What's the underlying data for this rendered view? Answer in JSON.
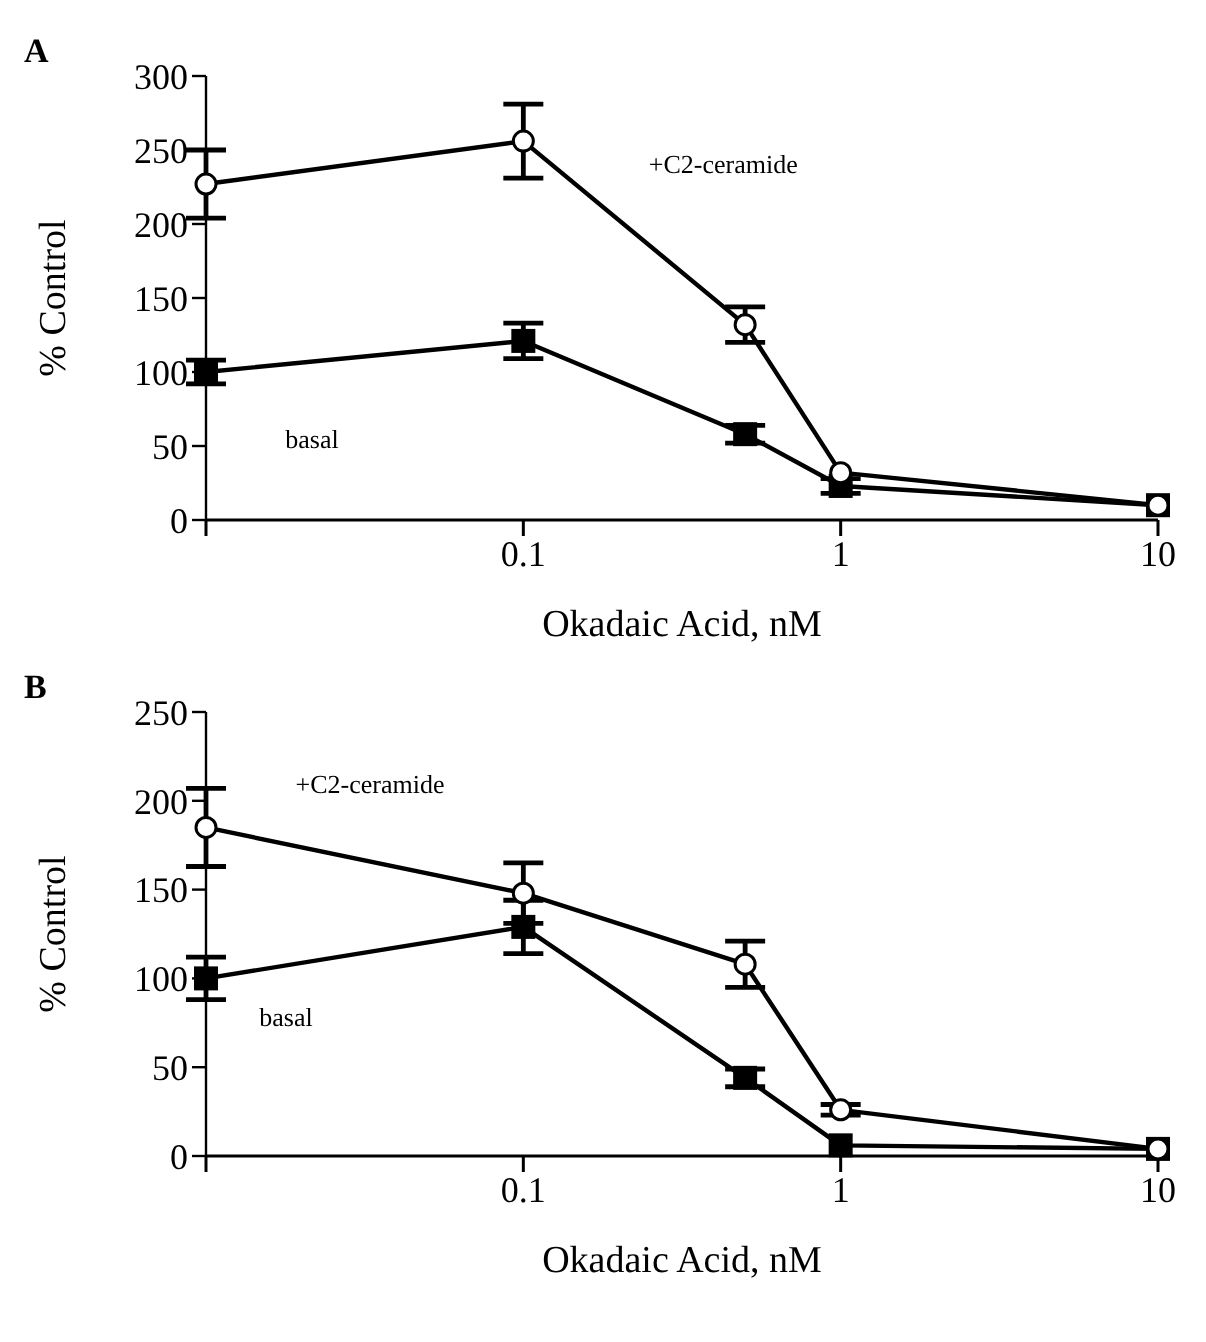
{
  "chart_data": [
    {
      "type": "line",
      "title": "A",
      "xlabel": "Okadaic Acid, nM",
      "ylabel": "% Control",
      "log": "x",
      "x": [
        0.01,
        0.1,
        0.5,
        1,
        10
      ],
      "xlim": [
        0.01,
        10
      ],
      "xticks": [
        {
          "value": 0.01,
          "label": null
        },
        0.1,
        1,
        10
      ],
      "ylim": [
        0,
        300
      ],
      "yticks": [
        0,
        50,
        100,
        150,
        200,
        250,
        300
      ],
      "grid": false,
      "line_style": "solid",
      "series": [
        {
          "name": "+C2-ceramide",
          "color": "#000000",
          "marker": "circle",
          "values": [
            227,
            256,
            132,
            32,
            10
          ],
          "errors": [
            23,
            25,
            12,
            null,
            null
          ]
        },
        {
          "name": "basal",
          "color": "#000000",
          "marker": "square",
          "values": [
            100,
            121,
            58,
            23,
            10
          ],
          "errors": [
            8,
            12,
            6,
            5,
            null
          ]
        }
      ]
    },
    {
      "type": "line",
      "title": "B",
      "xlabel": "Okadaic Acid, nM",
      "ylabel": "% Control",
      "log": "x",
      "x": [
        0.01,
        0.1,
        0.5,
        1,
        10
      ],
      "xlim": [
        0.01,
        10
      ],
      "xticks": [
        {
          "value": 0.01,
          "label": null
        },
        0.1,
        1,
        10
      ],
      "ylim": [
        0,
        250
      ],
      "yticks": [
        0,
        50,
        100,
        150,
        200,
        250
      ],
      "grid": false,
      "line_style": "solid",
      "series": [
        {
          "name": "+C2-ceramide",
          "color": "#000000",
          "marker": "circle",
          "values": [
            185,
            148,
            108,
            26,
            4
          ],
          "errors": [
            22,
            17,
            13,
            3,
            null
          ]
        },
        {
          "name": "basal",
          "color": "#000000",
          "marker": "square",
          "values": [
            100,
            129,
            44,
            6,
            4
          ],
          "errors": [
            12,
            15,
            5,
            null,
            null
          ]
        }
      ]
    }
  ]
}
